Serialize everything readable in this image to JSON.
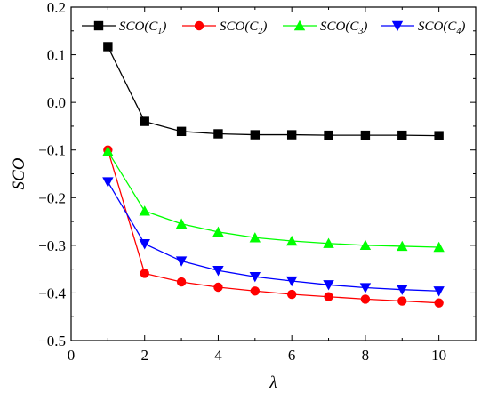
{
  "chart_data": {
    "type": "line",
    "xlabel": "λ",
    "ylabel": "SCO",
    "xlim": [
      0,
      11
    ],
    "ylim": [
      -0.5,
      0.2
    ],
    "xticks": [
      0,
      2,
      4,
      6,
      8,
      10
    ],
    "yticks": [
      0.2,
      0.1,
      0.0,
      -0.1,
      -0.2,
      -0.3,
      -0.4,
      -0.5
    ],
    "xtick_labels": [
      "0",
      "2",
      "4",
      "6",
      "8",
      "10"
    ],
    "ytick_labels": [
      "0.2",
      "0.1",
      "0.0",
      "−0.1",
      "−0.2",
      "−0.3",
      "−0.4",
      "−0.5"
    ],
    "grid": false,
    "legend_position": "top",
    "x": [
      1,
      2,
      3,
      4,
      5,
      6,
      7,
      8,
      9,
      10
    ],
    "series": [
      {
        "name": "SCO(C1)",
        "name_main": "SCO(C",
        "name_sub": "1",
        "name_end": ")",
        "color": "#000000",
        "marker": "square",
        "values": [
          0.117,
          -0.04,
          -0.061,
          -0.066,
          -0.068,
          -0.068,
          -0.069,
          -0.069,
          -0.069,
          -0.07
        ]
      },
      {
        "name": "SCO(C2)",
        "name_main": "SCO(C",
        "name_sub": "2",
        "name_end": ")",
        "color": "#ff0000",
        "marker": "circle",
        "values": [
          -0.1,
          -0.359,
          -0.377,
          -0.388,
          -0.396,
          -0.403,
          -0.408,
          -0.413,
          -0.417,
          -0.421
        ]
      },
      {
        "name": "SCO(C3)",
        "name_main": "SCO(C",
        "name_sub": "3",
        "name_end": ")",
        "color": "#00ff00",
        "marker": "triangle-up",
        "values": [
          -0.103,
          -0.228,
          -0.255,
          -0.272,
          -0.284,
          -0.291,
          -0.296,
          -0.3,
          -0.302,
          -0.304
        ]
      },
      {
        "name": "SCO(C4)",
        "name_main": "SCO(C",
        "name_sub": "4",
        "name_end": ")",
        "color": "#0000ff",
        "marker": "triangle-down",
        "values": [
          -0.167,
          -0.297,
          -0.333,
          -0.353,
          -0.366,
          -0.375,
          -0.383,
          -0.389,
          -0.393,
          -0.396
        ]
      }
    ]
  }
}
